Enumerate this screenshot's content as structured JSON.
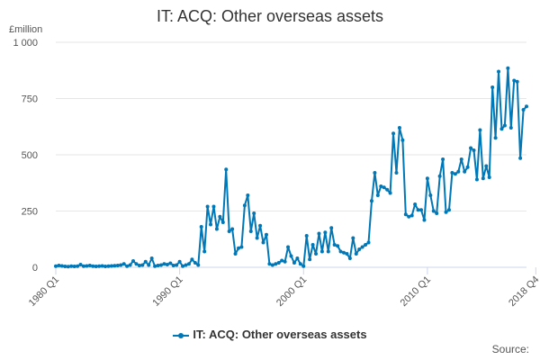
{
  "chart_data": {
    "type": "line",
    "title": "IT: ACQ: Other overseas assets",
    "ylabel": "£million",
    "xlabel": "",
    "ylim": [
      0,
      1000
    ],
    "yticks": [
      0,
      250,
      500,
      750,
      1000
    ],
    "ytick_labels": [
      "0",
      "250",
      "500",
      "750",
      "1 000"
    ],
    "x_start_label": "1980 Q1",
    "x_tick_labels": [
      {
        "index": 0,
        "label": "1980 Q1"
      },
      {
        "index": 40,
        "label": "1990 Q1"
      },
      {
        "index": 80,
        "label": "2000 Q1"
      },
      {
        "index": 120,
        "label": "2010 Q1"
      },
      {
        "index": 155,
        "label": "2018 Q4"
      }
    ],
    "legend_position": "bottom",
    "series": [
      {
        "name": "IT: ACQ: Other overseas assets",
        "color": "#0077b6",
        "values": [
          5,
          8,
          6,
          4,
          3,
          5,
          4,
          5,
          12,
          5,
          6,
          8,
          5,
          4,
          5,
          6,
          4,
          5,
          6,
          7,
          8,
          10,
          15,
          5,
          10,
          28,
          15,
          8,
          10,
          25,
          10,
          40,
          5,
          8,
          10,
          15,
          12,
          18,
          8,
          10,
          25,
          5,
          10,
          15,
          35,
          20,
          10,
          180,
          70,
          270,
          190,
          270,
          170,
          225,
          200,
          435,
          160,
          170,
          60,
          85,
          90,
          275,
          320,
          160,
          240,
          130,
          185,
          110,
          145,
          15,
          10,
          15,
          20,
          30,
          25,
          90,
          50,
          20,
          40,
          15,
          5,
          140,
          35,
          100,
          60,
          150,
          70,
          155,
          70,
          175,
          100,
          95,
          70,
          65,
          60,
          40,
          130,
          60,
          80,
          90,
          100,
          110,
          295,
          420,
          320,
          360,
          355,
          345,
          330,
          595,
          420,
          620,
          565,
          235,
          225,
          230,
          280,
          255,
          255,
          210,
          395,
          320,
          250,
          240,
          405,
          480,
          245,
          255,
          420,
          415,
          425,
          480,
          425,
          445,
          530,
          520,
          390,
          610,
          395,
          450,
          400,
          800,
          575,
          870,
          615,
          630,
          885,
          620,
          830,
          825,
          485,
          700,
          715
        ]
      }
    ]
  },
  "legend": {
    "label": "IT: ACQ: Other overseas assets"
  },
  "source": {
    "label": "Source:"
  }
}
